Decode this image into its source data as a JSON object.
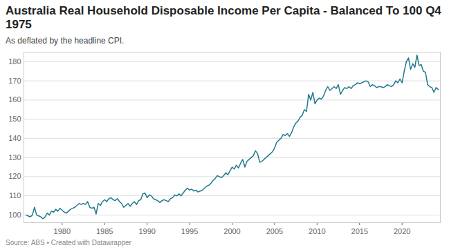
{
  "chart_data": {
    "type": "line",
    "title": "Australia Real Household Disposable Income Per Capita - Balanced To 100 Q4 1975",
    "subtitle": "As deflated by the headline CPI.",
    "source": "Source: ABS • Created with Datawrapper",
    "color": "#1f7a8c",
    "grid": true,
    "xlim": [
      1975.5,
      2024.5
    ],
    "xticks": [
      1980,
      1985,
      1990,
      1995,
      2000,
      2005,
      2010,
      2015,
      2020
    ],
    "ylim": [
      96,
      185
    ],
    "yticks": [
      100,
      110,
      120,
      130,
      140,
      150,
      160,
      170,
      180
    ],
    "x": [
      1975.75,
      1976,
      1976.25,
      1976.5,
      1976.75,
      1977,
      1977.25,
      1977.5,
      1977.75,
      1978,
      1978.25,
      1978.5,
      1978.75,
      1979,
      1979.25,
      1979.5,
      1979.75,
      1980,
      1980.25,
      1980.5,
      1980.75,
      1981,
      1981.25,
      1981.5,
      1981.75,
      1982,
      1982.25,
      1982.5,
      1982.75,
      1983,
      1983.25,
      1983.5,
      1983.75,
      1984,
      1984.25,
      1984.5,
      1984.75,
      1985,
      1985.25,
      1985.5,
      1985.75,
      1986,
      1986.25,
      1986.5,
      1986.75,
      1987,
      1987.25,
      1987.5,
      1987.75,
      1988,
      1988.25,
      1988.5,
      1988.75,
      1989,
      1989.25,
      1989.5,
      1989.75,
      1990,
      1990.25,
      1990.5,
      1990.75,
      1991,
      1991.25,
      1991.5,
      1991.75,
      1992,
      1992.25,
      1992.5,
      1992.75,
      1993,
      1993.25,
      1993.5,
      1993.75,
      1994,
      1994.25,
      1994.5,
      1994.75,
      1995,
      1995.25,
      1995.5,
      1995.75,
      1996,
      1996.25,
      1996.5,
      1996.75,
      1997,
      1997.25,
      1997.5,
      1997.75,
      1998,
      1998.25,
      1998.5,
      1998.75,
      1999,
      1999.25,
      1999.5,
      1999.75,
      2000,
      2000.25,
      2000.5,
      2000.75,
      2001,
      2001.25,
      2001.5,
      2001.75,
      2002,
      2002.25,
      2002.5,
      2002.75,
      2003,
      2003.25,
      2003.5,
      2003.75,
      2004,
      2004.25,
      2004.5,
      2004.75,
      2005,
      2005.25,
      2005.5,
      2005.75,
      2006,
      2006.25,
      2006.5,
      2006.75,
      2007,
      2007.25,
      2007.5,
      2007.75,
      2008,
      2008.25,
      2008.5,
      2008.75,
      2009,
      2009.25,
      2009.5,
      2009.75,
      2010,
      2010.25,
      2010.5,
      2010.75,
      2011,
      2011.25,
      2011.5,
      2011.75,
      2012,
      2012.25,
      2012.5,
      2012.75,
      2013,
      2013.25,
      2013.5,
      2013.75,
      2014,
      2014.25,
      2014.5,
      2014.75,
      2015,
      2015.25,
      2015.5,
      2015.75,
      2016,
      2016.25,
      2016.5,
      2016.75,
      2017,
      2017.25,
      2017.5,
      2017.75,
      2018,
      2018.25,
      2018.5,
      2018.75,
      2019,
      2019.25,
      2019.5,
      2019.75,
      2020,
      2020.25,
      2020.5,
      2020.75,
      2021,
      2021.25,
      2021.5,
      2021.75,
      2022,
      2022.25,
      2022.5,
      2022.75,
      2023,
      2023.25,
      2023.5,
      2023.75,
      2024,
      2024.25
    ],
    "values": [
      100,
      99.5,
      99,
      100,
      104,
      100,
      99.5,
      99,
      98,
      99,
      101,
      100,
      102,
      101.5,
      103,
      102,
      103.5,
      102.5,
      101.5,
      101,
      102,
      103,
      103.5,
      104,
      105,
      106,
      105.5,
      106,
      105.5,
      107,
      104,
      103.5,
      104,
      100.5,
      106,
      105,
      107,
      108,
      107,
      108.5,
      109,
      108,
      107.5,
      108.5,
      107,
      106,
      104,
      105,
      106,
      104.5,
      106,
      107,
      105.5,
      107.5,
      108,
      111,
      111.5,
      109,
      110.5,
      110,
      108.5,
      108,
      107.5,
      106.5,
      107.5,
      108,
      107.5,
      107,
      108.5,
      109,
      110.5,
      110,
      111,
      110,
      111.5,
      113,
      114,
      113,
      113.5,
      112.5,
      113,
      112,
      112.5,
      113,
      114,
      115,
      115.5,
      116.5,
      118,
      119,
      120.5,
      120,
      119.5,
      120.5,
      122,
      121,
      123,
      125,
      124,
      126,
      124.5,
      127,
      129,
      125,
      128,
      129,
      130,
      131,
      133.5,
      132,
      127.5,
      128,
      129,
      130,
      131,
      132,
      133,
      135,
      138,
      139,
      140,
      142,
      141.5,
      142.5,
      141,
      143,
      146,
      148,
      149,
      151,
      152,
      155,
      154,
      163,
      160,
      164,
      158,
      160,
      161,
      160.5,
      162,
      165,
      167,
      165,
      166,
      167,
      166,
      168,
      163,
      165,
      166.5,
      166,
      167,
      166,
      167.5,
      168,
      169,
      168.5,
      169,
      169.5,
      170,
      169.5,
      167,
      168,
      167.5,
      166.5,
      167,
      167,
      166.5,
      167,
      168,
      167.5,
      167,
      168,
      170,
      169,
      171,
      169,
      175,
      180,
      182,
      176,
      179,
      177,
      183.5,
      178,
      178.5,
      175,
      174.5,
      168,
      167,
      166.5,
      164,
      166.5,
      165.5
    ]
  }
}
